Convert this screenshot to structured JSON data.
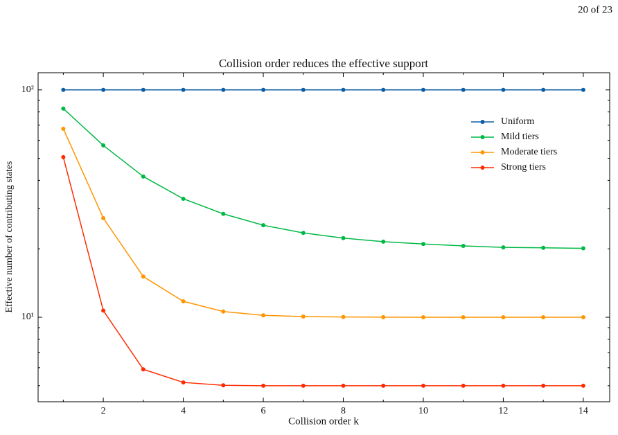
{
  "header": {
    "page_number": "20 of 23"
  },
  "chart_data": {
    "type": "line",
    "title": "Collision order reduces the effective support",
    "x_label": "Collision order k",
    "y_label": "Effective number of contributing states",
    "x": [
      1,
      2,
      3,
      4,
      5,
      6,
      7,
      8,
      9,
      10,
      11,
      12,
      13,
      14
    ],
    "series": [
      {
        "name": "Uniform",
        "color": "#0c5da5",
        "values": [
          100,
          100,
          100,
          100,
          100,
          100,
          100,
          100,
          100,
          100,
          100,
          100,
          100,
          100
        ]
      },
      {
        "name": "Mild tiers",
        "color": "#00b945",
        "values": [
          82.8,
          57,
          41.6,
          33.2,
          28.5,
          25.4,
          23.5,
          22.3,
          21.5,
          21.0,
          20.6,
          20.3,
          20.2,
          20.1
        ]
      },
      {
        "name": "Moderate tiers",
        "color": "#ff9500",
        "values": [
          67.5,
          27.3,
          15.1,
          11.75,
          10.6,
          10.2,
          10.07,
          10.03,
          10.01,
          10,
          10,
          10,
          10,
          10
        ]
      },
      {
        "name": "Strong tiers",
        "color": "#ff2c00",
        "values": [
          50.6,
          10.7,
          5.9,
          5.17,
          5.02,
          5.0,
          5.0,
          5.0,
          5.0,
          5.0,
          5.0,
          5.0,
          5.0,
          5.0
        ]
      }
    ],
    "xlim": [
      0.37,
      14.66
    ],
    "ylim": [
      4.25,
      119
    ],
    "xticks": [
      2,
      4,
      6,
      8,
      10,
      12,
      14
    ],
    "xminorticks": [
      1,
      3,
      5,
      7,
      9,
      11,
      13
    ],
    "yticks": [
      {
        "value": 10,
        "label": "10¹"
      },
      {
        "value": 100,
        "label": "10²"
      }
    ],
    "yminorticks": [
      5,
      6,
      7,
      8,
      9,
      20,
      30,
      40,
      50,
      60,
      70,
      80,
      90
    ],
    "yscale": "log",
    "legend": "upper right"
  }
}
